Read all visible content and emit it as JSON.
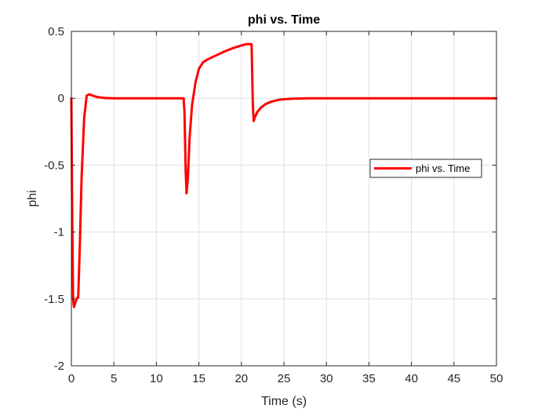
{
  "chart_data": {
    "type": "line",
    "title": "phi vs. Time",
    "xlabel": "Time (s)",
    "ylabel": "phi",
    "xlim": [
      0,
      50
    ],
    "ylim": [
      -2,
      0.5
    ],
    "xticks": [
      0,
      5,
      10,
      15,
      20,
      25,
      30,
      35,
      40,
      45,
      50
    ],
    "yticks": [
      0.5,
      0,
      -0.5,
      -1,
      -1.5,
      -2
    ],
    "xtick_labels": [
      "0",
      "5",
      "10",
      "15",
      "20",
      "25",
      "30",
      "35",
      "40",
      "45",
      "50"
    ],
    "ytick_labels": [
      "0.5",
      "0",
      "-0.5",
      "-1",
      "-1.5",
      "-2"
    ],
    "grid": true,
    "legend_position": "east",
    "series": [
      {
        "name": "phi vs. Time",
        "color": "#ff0000",
        "x": [
          0,
          0.1,
          0.2,
          0.3,
          0.5,
          0.7,
          0.8,
          1.0,
          1.2,
          1.5,
          1.8,
          2.1,
          2.5,
          3.0,
          3.5,
          4.0,
          5.0,
          6.0,
          8.0,
          10.0,
          12.0,
          13.2,
          13.3,
          13.45,
          13.55,
          13.7,
          13.9,
          14.2,
          14.6,
          15.0,
          15.5,
          16.0,
          17.0,
          18.0,
          19.0,
          20.0,
          20.6,
          21.0,
          21.2,
          21.35,
          21.45,
          21.6,
          21.9,
          22.3,
          22.8,
          23.5,
          24.5,
          26.0,
          28.0,
          30.0,
          35.0,
          40.0,
          45.0,
          50.0
        ],
        "y": [
          0,
          -0.9,
          -1.5,
          -1.56,
          -1.52,
          -1.49,
          -1.49,
          -1.1,
          -0.6,
          -0.15,
          0.02,
          0.03,
          0.02,
          0.01,
          0.005,
          0.002,
          0,
          0,
          0,
          0,
          0,
          0,
          -0.1,
          -0.55,
          -0.71,
          -0.6,
          -0.3,
          -0.05,
          0.12,
          0.22,
          0.27,
          0.29,
          0.32,
          0.35,
          0.375,
          0.395,
          0.405,
          0.405,
          0.405,
          -0.05,
          -0.17,
          -0.14,
          -0.1,
          -0.07,
          -0.045,
          -0.025,
          -0.01,
          -0.003,
          0,
          0,
          0,
          0,
          0,
          0
        ]
      }
    ]
  }
}
